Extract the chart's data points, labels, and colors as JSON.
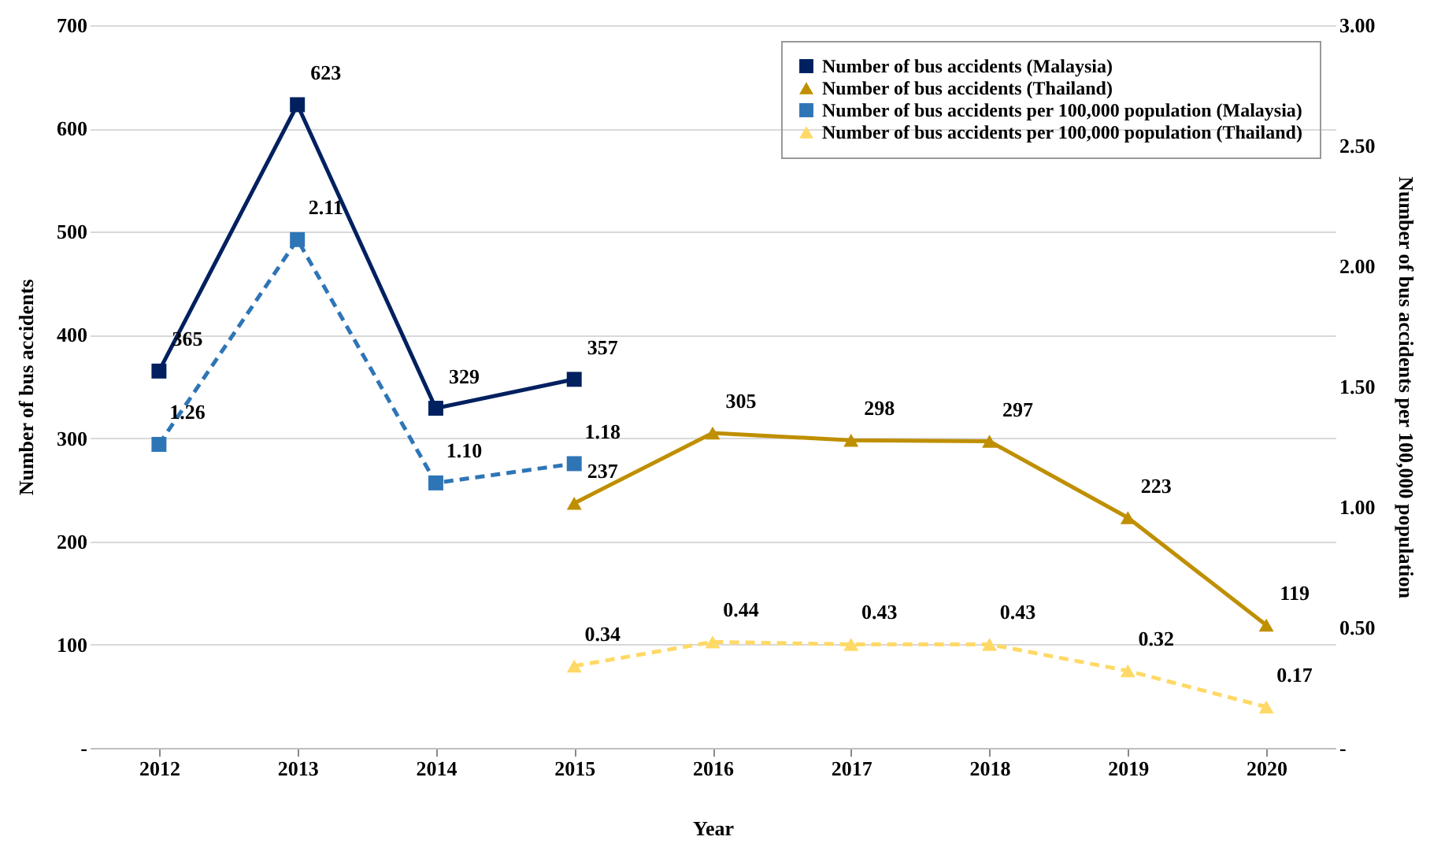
{
  "chart_data": {
    "type": "line",
    "xlabel": "Year",
    "ylabel": "Number of bus accidents",
    "y2label": "Number of bus accidents per 100,000 population",
    "categories": [
      "2012",
      "2013",
      "2014",
      "2015",
      "2016",
      "2017",
      "2018",
      "2019",
      "2020"
    ],
    "series": [
      {
        "name": "Number of bus accidents (Malaysia)",
        "color": "#002060",
        "marker": "square",
        "line_style": "solid",
        "values": [
          365,
          623,
          329,
          357,
          null,
          null,
          null,
          null,
          null
        ],
        "value_labels": [
          "365",
          "623",
          "329",
          "357",
          null,
          null,
          null,
          null,
          null
        ]
      },
      {
        "name": "Number of bus accidents (Thailand)",
        "color": "#bf8f00",
        "marker": "triangle",
        "line_style": "solid",
        "values": [
          null,
          null,
          null,
          237,
          305,
          298,
          297,
          223,
          119
        ],
        "value_labels": [
          null,
          null,
          null,
          "237",
          "305",
          "298",
          "297",
          "223",
          "119"
        ]
      },
      {
        "name": "Number of bus accidents per 100,000 population (Malaysia)",
        "color": "#2e75b6",
        "marker": "square",
        "line_style": "dashed",
        "axis": "y2",
        "values": [
          1.26,
          2.11,
          1.1,
          1.18,
          null,
          null,
          null,
          null,
          null
        ],
        "value_labels": [
          "1.26",
          "2.11",
          "1.10",
          "1.18",
          null,
          null,
          null,
          null,
          null
        ]
      },
      {
        "name": "Number of bus accidents per 100,000 population (Thailand)",
        "color": "#ffd966",
        "marker": "triangle",
        "line_style": "dashed",
        "axis": "y2",
        "values": [
          null,
          null,
          null,
          0.34,
          0.44,
          0.43,
          0.43,
          0.32,
          0.17
        ],
        "value_labels": [
          null,
          null,
          null,
          "0.34",
          "0.44",
          "0.43",
          "0.43",
          "0.32",
          "0.17"
        ]
      }
    ],
    "ylim": [
      0,
      700
    ],
    "yticks": [
      {
        "value": 0,
        "label": "-"
      },
      100,
      200,
      300,
      400,
      500,
      600,
      700
    ],
    "y2lim": [
      0,
      3
    ],
    "y2ticks": [
      {
        "value": 0,
        "label": "-"
      },
      {
        "value": 0.5,
        "label": "0.50"
      },
      {
        "value": 1,
        "label": "1.00"
      },
      {
        "value": 1.5,
        "label": "1.50"
      },
      {
        "value": 2,
        "label": "2.00"
      },
      {
        "value": 2.5,
        "label": "2.50"
      },
      {
        "value": 3,
        "label": "3.00"
      }
    ],
    "grid": "y",
    "legend": "top right"
  }
}
